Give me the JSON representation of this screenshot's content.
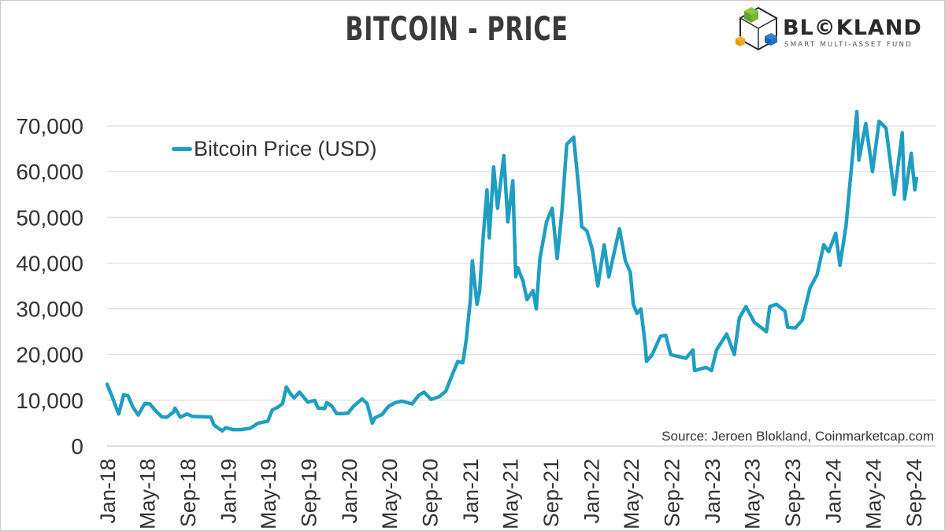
{
  "chart_data": {
    "type": "line",
    "title": "BITCOIN - PRICE",
    "source": "Source: Jeroen Blokland, Coinmarketcap.com",
    "legend_position": "top-left",
    "grid": "horizontal",
    "series_color": "#1f9ec1",
    "ylim": [
      0,
      75000
    ],
    "y_ticks": [
      0,
      10000,
      20000,
      30000,
      40000,
      50000,
      60000,
      70000
    ],
    "y_tick_labels": [
      "0",
      "10,000",
      "20,000",
      "30,000",
      "40,000",
      "50,000",
      "60,000",
      "70,000"
    ],
    "x_tick_labels": [
      "Jan-18",
      "May-18",
      "Sep-18",
      "Jan-19",
      "May-19",
      "Sep-19",
      "Jan-20",
      "May-20",
      "Sep-20",
      "Jan-21",
      "May-21",
      "Sep-21",
      "Jan-22",
      "May-22",
      "Sep-22",
      "Jan-23",
      "May-23",
      "Sep-23",
      "Jan-24",
      "May-24",
      "Sep-24"
    ],
    "series": [
      {
        "name": "Bitcoin Price (USD)",
        "points": [
          [
            "2018-01-01",
            13500
          ],
          [
            "2018-01-15",
            11000
          ],
          [
            "2018-02-05",
            7000
          ],
          [
            "2018-02-20",
            11200
          ],
          [
            "2018-03-05",
            11000
          ],
          [
            "2018-03-20",
            8500
          ],
          [
            "2018-04-05",
            6800
          ],
          [
            "2018-04-25",
            9300
          ],
          [
            "2018-05-10",
            9200
          ],
          [
            "2018-05-30",
            7500
          ],
          [
            "2018-06-15",
            6400
          ],
          [
            "2018-06-30",
            6300
          ],
          [
            "2018-07-20",
            7400
          ],
          [
            "2018-07-25",
            8300
          ],
          [
            "2018-08-10",
            6300
          ],
          [
            "2018-08-30",
            7000
          ],
          [
            "2018-09-15",
            6500
          ],
          [
            "2018-10-15",
            6400
          ],
          [
            "2018-11-10",
            6350
          ],
          [
            "2018-11-20",
            4600
          ],
          [
            "2018-12-15",
            3300
          ],
          [
            "2018-12-25",
            4000
          ],
          [
            "2019-01-15",
            3600
          ],
          [
            "2019-02-10",
            3600
          ],
          [
            "2019-03-10",
            3900
          ],
          [
            "2019-04-02",
            5000
          ],
          [
            "2019-05-01",
            5400
          ],
          [
            "2019-05-15",
            7900
          ],
          [
            "2019-06-01",
            8500
          ],
          [
            "2019-06-15",
            9300
          ],
          [
            "2019-06-26",
            12900
          ],
          [
            "2019-07-10",
            11300
          ],
          [
            "2019-07-20",
            10500
          ],
          [
            "2019-08-05",
            11800
          ],
          [
            "2019-08-30",
            9600
          ],
          [
            "2019-09-20",
            10000
          ],
          [
            "2019-09-30",
            8300
          ],
          [
            "2019-10-20",
            8200
          ],
          [
            "2019-10-26",
            9500
          ],
          [
            "2019-11-10",
            8800
          ],
          [
            "2019-11-25",
            7100
          ],
          [
            "2019-12-15",
            7100
          ],
          [
            "2019-12-30",
            7200
          ],
          [
            "2020-01-15",
            8700
          ],
          [
            "2020-02-10",
            10300
          ],
          [
            "2020-02-25",
            9300
          ],
          [
            "2020-03-12",
            5000
          ],
          [
            "2020-03-20",
            6200
          ],
          [
            "2020-04-10",
            6900
          ],
          [
            "2020-04-30",
            8700
          ],
          [
            "2020-05-20",
            9500
          ],
          [
            "2020-06-10",
            9800
          ],
          [
            "2020-07-10",
            9200
          ],
          [
            "2020-07-30",
            11100
          ],
          [
            "2020-08-15",
            11800
          ],
          [
            "2020-09-05",
            10200
          ],
          [
            "2020-09-30",
            10800
          ],
          [
            "2020-10-20",
            12000
          ],
          [
            "2020-11-05",
            15000
          ],
          [
            "2020-11-25",
            18500
          ],
          [
            "2020-12-10",
            18200
          ],
          [
            "2020-12-20",
            23000
          ],
          [
            "2021-01-02",
            32000
          ],
          [
            "2021-01-08",
            40500
          ],
          [
            "2021-01-22",
            31000
          ],
          [
            "2021-01-30",
            34000
          ],
          [
            "2021-02-10",
            46000
          ],
          [
            "2021-02-21",
            56000
          ],
          [
            "2021-02-28",
            45500
          ],
          [
            "2021-03-13",
            61000
          ],
          [
            "2021-03-25",
            52000
          ],
          [
            "2021-04-13",
            63500
          ],
          [
            "2021-04-25",
            49000
          ],
          [
            "2021-05-10",
            58000
          ],
          [
            "2021-05-19",
            37000
          ],
          [
            "2021-05-25",
            39000
          ],
          [
            "2021-06-10",
            36000
          ],
          [
            "2021-06-22",
            32000
          ],
          [
            "2021-07-10",
            34000
          ],
          [
            "2021-07-20",
            30000
          ],
          [
            "2021-07-31",
            41000
          ],
          [
            "2021-08-20",
            49000
          ],
          [
            "2021-09-06",
            52000
          ],
          [
            "2021-09-21",
            41000
          ],
          [
            "2021-10-05",
            51000
          ],
          [
            "2021-10-20",
            66000
          ],
          [
            "2021-11-10",
            67500
          ],
          [
            "2021-11-28",
            54000
          ],
          [
            "2021-12-04",
            48000
          ],
          [
            "2021-12-20",
            47000
          ],
          [
            "2022-01-05",
            43000
          ],
          [
            "2022-01-22",
            35000
          ],
          [
            "2022-02-10",
            44000
          ],
          [
            "2022-02-24",
            37000
          ],
          [
            "2022-03-28",
            47500
          ],
          [
            "2022-04-15",
            40500
          ],
          [
            "2022-04-30",
            38000
          ],
          [
            "2022-05-09",
            31000
          ],
          [
            "2022-05-20",
            29000
          ],
          [
            "2022-06-01",
            30000
          ],
          [
            "2022-06-14",
            22000
          ],
          [
            "2022-06-18",
            18500
          ],
          [
            "2022-07-05",
            20000
          ],
          [
            "2022-07-30",
            24000
          ],
          [
            "2022-08-15",
            24200
          ],
          [
            "2022-08-30",
            20000
          ],
          [
            "2022-09-15",
            19700
          ],
          [
            "2022-10-15",
            19200
          ],
          [
            "2022-11-05",
            21000
          ],
          [
            "2022-11-10",
            16500
          ],
          [
            "2022-12-15",
            17200
          ],
          [
            "2022-12-31",
            16500
          ],
          [
            "2023-01-15",
            21000
          ],
          [
            "2023-02-15",
            24500
          ],
          [
            "2023-03-10",
            20000
          ],
          [
            "2023-03-25",
            28000
          ],
          [
            "2023-04-14",
            30500
          ],
          [
            "2023-05-10",
            27000
          ],
          [
            "2023-06-15",
            25000
          ],
          [
            "2023-06-25",
            30500
          ],
          [
            "2023-07-15",
            31000
          ],
          [
            "2023-08-10",
            29500
          ],
          [
            "2023-08-18",
            26000
          ],
          [
            "2023-09-10",
            25800
          ],
          [
            "2023-10-01",
            27500
          ],
          [
            "2023-10-24",
            34500
          ],
          [
            "2023-11-15",
            37500
          ],
          [
            "2023-12-05",
            44000
          ],
          [
            "2023-12-20",
            42500
          ],
          [
            "2024-01-10",
            46500
          ],
          [
            "2024-01-23",
            39500
          ],
          [
            "2024-02-10",
            48000
          ],
          [
            "2024-02-28",
            62000
          ],
          [
            "2024-03-14",
            73100
          ],
          [
            "2024-03-20",
            62500
          ],
          [
            "2024-04-10",
            70500
          ],
          [
            "2024-04-30",
            60000
          ],
          [
            "2024-05-20",
            71000
          ],
          [
            "2024-06-10",
            69500
          ],
          [
            "2024-06-25",
            61000
          ],
          [
            "2024-07-05",
            55000
          ],
          [
            "2024-07-29",
            68500
          ],
          [
            "2024-08-05",
            54000
          ],
          [
            "2024-08-15",
            59000
          ],
          [
            "2024-08-25",
            64000
          ],
          [
            "2024-09-05",
            56000
          ],
          [
            "2024-09-10",
            58500
          ]
        ]
      }
    ]
  },
  "brand": {
    "name": "BL©KLAND",
    "tagline": "SMART MULTI-ASSET FUND"
  }
}
